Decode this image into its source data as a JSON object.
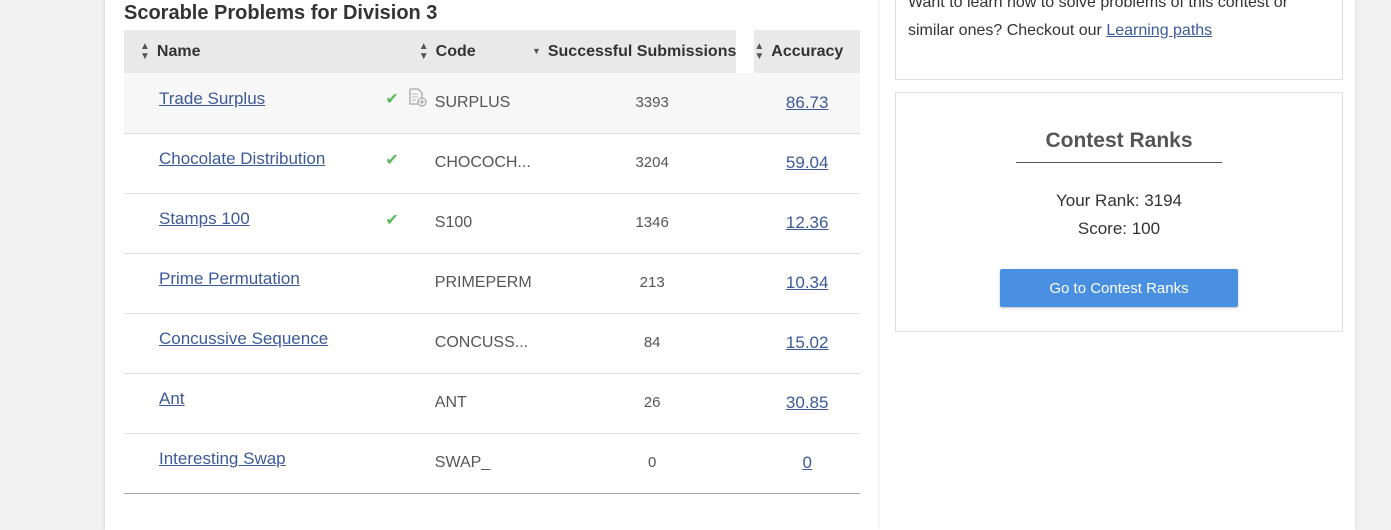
{
  "section_title": "Scorable Problems for Division 3",
  "table": {
    "headers": {
      "name": "Name",
      "code": "Code",
      "successful": "Successful Submissions",
      "accuracy": "Accuracy"
    },
    "rows": [
      {
        "name": "Trade Surplus",
        "solved": true,
        "code": "SURPLUS",
        "successful": "3393",
        "accuracy": "86.73"
      },
      {
        "name": "Chocolate Distribution",
        "solved": true,
        "code": "CHOCOCH...",
        "successful": "3204",
        "accuracy": "59.04"
      },
      {
        "name": "Stamps 100",
        "solved": true,
        "code": "S100",
        "successful": "1346",
        "accuracy": "12.36"
      },
      {
        "name": "Prime Permutation",
        "solved": false,
        "code": "PRIMEPERM",
        "successful": "213",
        "accuracy": "10.34"
      },
      {
        "name": "Concussive Sequence",
        "solved": false,
        "code": "CONCUSS...",
        "successful": "84",
        "accuracy": "15.02"
      },
      {
        "name": "Ant",
        "solved": false,
        "code": "ANT",
        "successful": "26",
        "accuracy": "30.85"
      },
      {
        "name": "Interesting Swap",
        "solved": false,
        "code": "SWAP_",
        "successful": "0",
        "accuracy": "0"
      }
    ]
  },
  "learn_box": {
    "text_line1": "Want to learn how to solve problems of this contest or",
    "text_line2": "similar ones? Checkout our ",
    "link": "Learning paths"
  },
  "ranks_box": {
    "title": "Contest Ranks",
    "your_rank": "Your Rank: 3194",
    "score": "Score: 100",
    "button": "Go to Contest Ranks"
  },
  "colors": {
    "accent": "#4a90e2",
    "link": "#3c5a99",
    "check": "#5cb85c"
  }
}
